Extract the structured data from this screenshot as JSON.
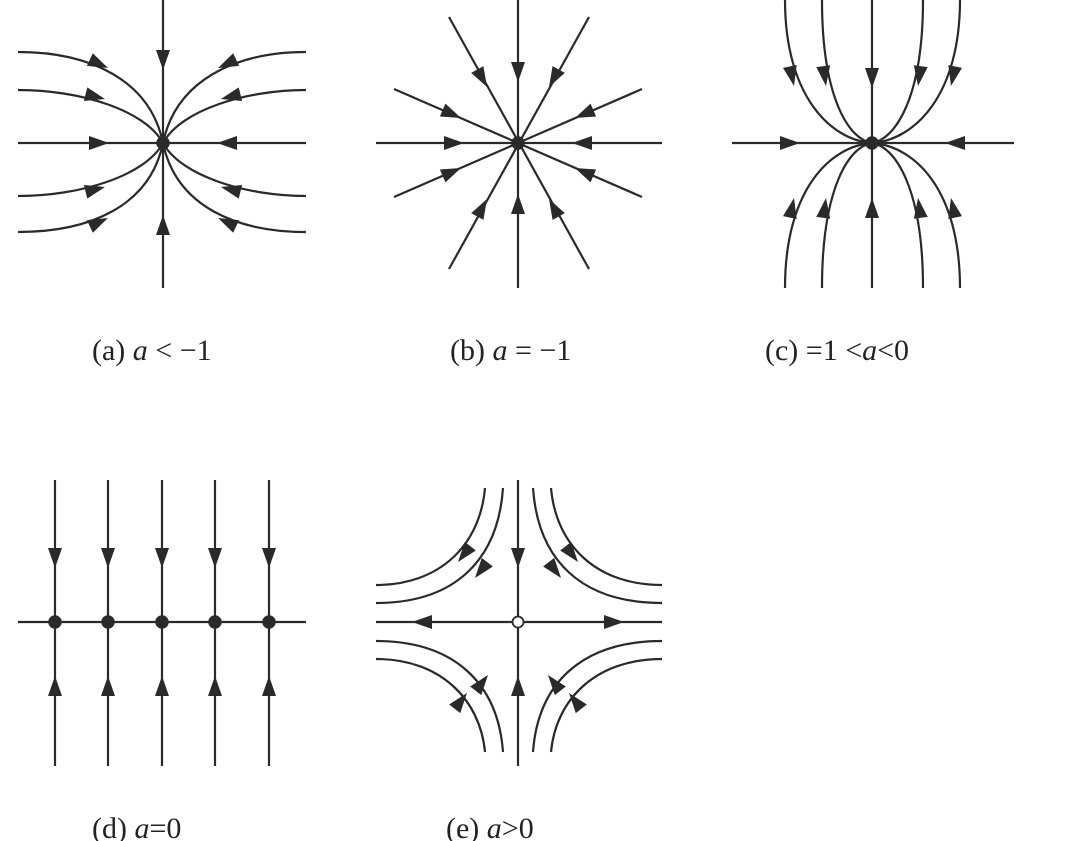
{
  "panels": [
    {
      "id": "a",
      "label": "(a)",
      "condition_var": "a",
      "condition_rest": " < −1"
    },
    {
      "id": "b",
      "label": "(b)",
      "condition_var": "a",
      "condition_rest": " = −1"
    },
    {
      "id": "c",
      "label": "(c)",
      "condition_prefix": " =1 <",
      "condition_var": "a",
      "condition_rest": "<0"
    },
    {
      "id": "d",
      "label": "(d)",
      "condition_var": "a",
      "condition_rest": "=0"
    },
    {
      "id": "e",
      "label": "(e)",
      "condition_var": "a",
      "condition_rest": ">0"
    }
  ]
}
